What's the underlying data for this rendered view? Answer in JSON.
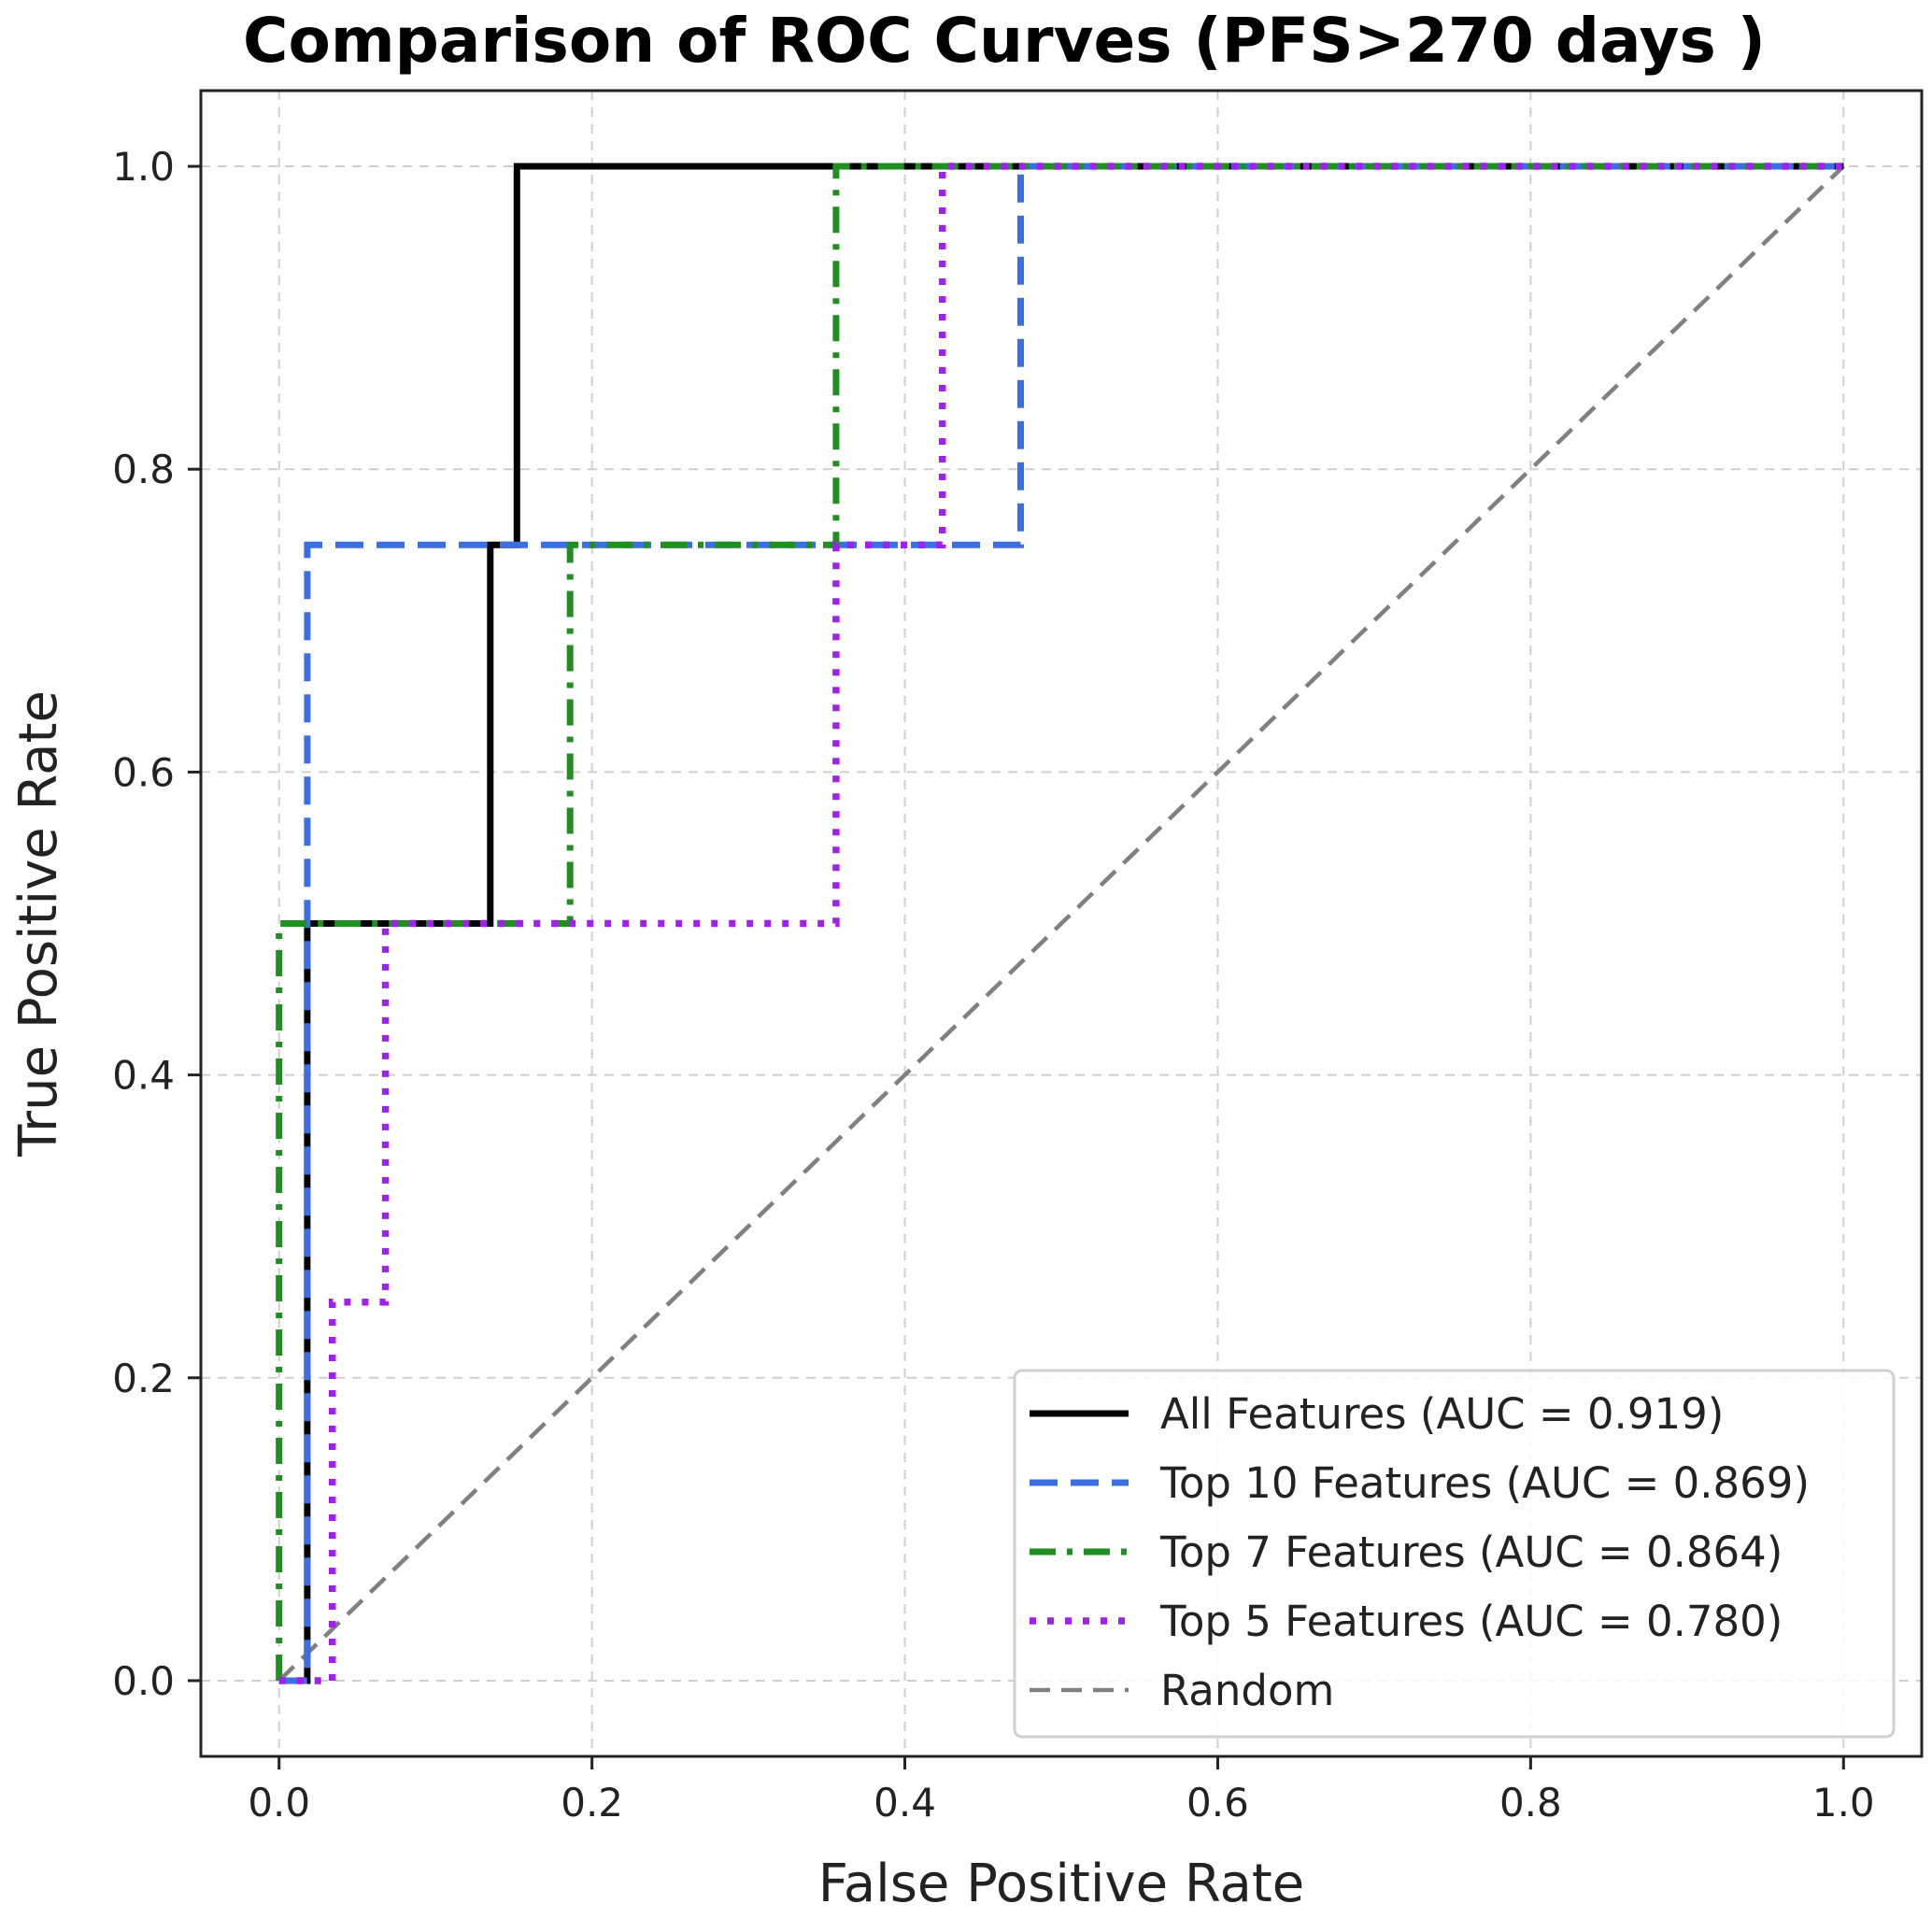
{
  "chart_data": {
    "type": "line",
    "title": "Comparison of ROC Curves (PFS>270 days )",
    "xlabel": "False Positive Rate",
    "ylabel": "True Positive Rate",
    "xlim": [
      -0.05,
      1.05
    ],
    "ylim": [
      -0.05,
      1.05
    ],
    "xticks": [
      0.0,
      0.2,
      0.4,
      0.6,
      0.8,
      1.0
    ],
    "yticks": [
      0.0,
      0.2,
      0.4,
      0.6,
      0.8,
      1.0
    ],
    "xtick_labels": [
      "0.0",
      "0.2",
      "0.4",
      "0.6",
      "0.8",
      "1.0"
    ],
    "ytick_labels": [
      "0.0",
      "0.2",
      "0.4",
      "0.6",
      "0.8",
      "1.0"
    ],
    "grid": true,
    "legend_position": "bottom-right",
    "series": [
      {
        "name": "All Features (AUC = 0.919)",
        "color": "#000000",
        "style": "solid",
        "x": [
          0.0,
          0.018,
          0.018,
          0.135,
          0.135,
          0.152,
          0.152,
          1.0
        ],
        "y": [
          0.0,
          0.0,
          0.5,
          0.5,
          0.75,
          0.75,
          1.0,
          1.0
        ]
      },
      {
        "name": "Top 10 Features (AUC = 0.869)",
        "color": "#3b6fe0",
        "style": "dashed",
        "x": [
          0.0,
          0.018,
          0.018,
          0.474,
          0.474,
          1.0
        ],
        "y": [
          0.0,
          0.0,
          0.75,
          0.75,
          1.0,
          1.0
        ]
      },
      {
        "name": "Top 7 Features (AUC = 0.864)",
        "color": "#1f8f1f",
        "style": "dashdot",
        "x": [
          0.0,
          0.0,
          0.186,
          0.186,
          0.356,
          0.356,
          1.0
        ],
        "y": [
          0.0,
          0.5,
          0.5,
          0.75,
          0.75,
          1.0,
          1.0
        ]
      },
      {
        "name": "Top 5 Features (AUC = 0.780)",
        "color": "#a020f0",
        "style": "dotted",
        "x": [
          0.0,
          0.034,
          0.034,
          0.068,
          0.068,
          0.356,
          0.356,
          0.424,
          0.424,
          1.0
        ],
        "y": [
          0.0,
          0.0,
          0.25,
          0.25,
          0.5,
          0.5,
          0.75,
          0.75,
          1.0,
          1.0
        ]
      },
      {
        "name": "Random",
        "color": "#808080",
        "style": "dashed-thin",
        "x": [
          0.0,
          1.0
        ],
        "y": [
          0.0,
          1.0
        ]
      }
    ]
  }
}
